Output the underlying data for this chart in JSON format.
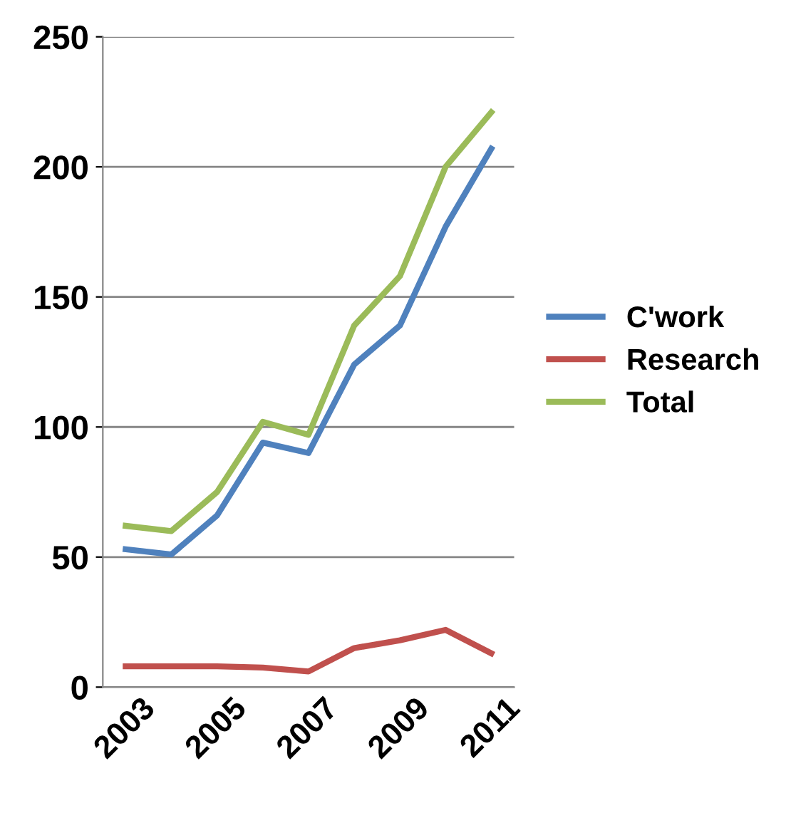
{
  "chart_data": {
    "type": "line",
    "categories": [
      "2003",
      null,
      "2005",
      null,
      "2007",
      null,
      "2009",
      null,
      "2011"
    ],
    "series": [
      {
        "name": "C'work",
        "color": "#4f81bd",
        "values": [
          53,
          51,
          66,
          94,
          90,
          124,
          139,
          177,
          207
        ]
      },
      {
        "name": "Research",
        "color": "#c0504d",
        "values": [
          8,
          8,
          8,
          7.5,
          6,
          15,
          18,
          22,
          13
        ]
      },
      {
        "name": "Total",
        "color": "#9bbb59",
        "values": [
          62,
          60,
          75,
          102,
          97,
          139,
          158,
          200,
          221
        ]
      }
    ],
    "ylim": [
      0,
      250
    ],
    "yticks": [
      0,
      50,
      100,
      150,
      200,
      250
    ],
    "grid": "y",
    "legend": "right"
  }
}
